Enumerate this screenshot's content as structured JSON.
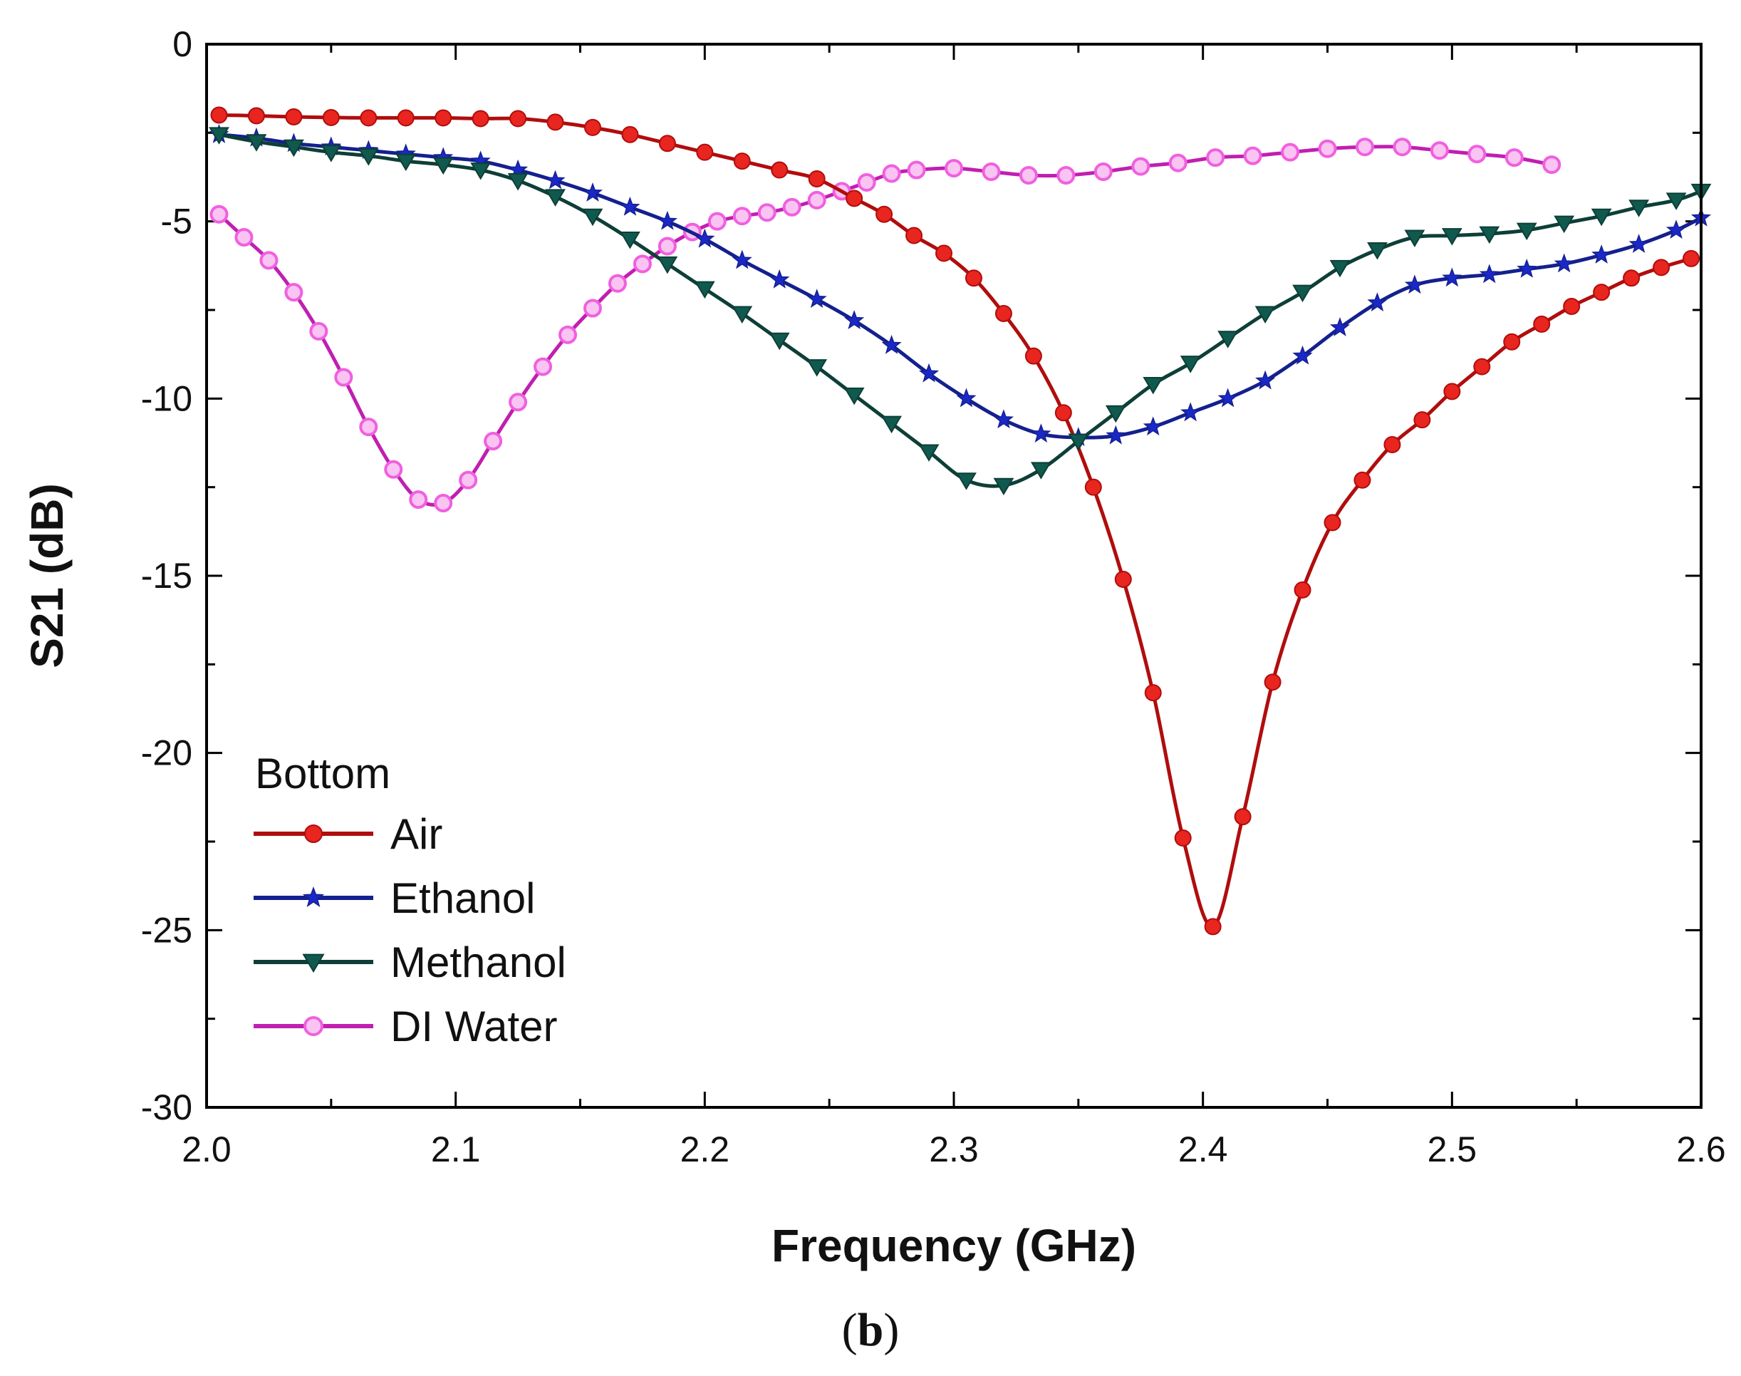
{
  "chart_data": {
    "type": "line",
    "title": "",
    "xlabel": "Frequency (GHz)",
    "ylabel": "S21 (dB)",
    "xlim": [
      2.0,
      2.6
    ],
    "ylim": [
      -30,
      0
    ],
    "xticks": [
      2.0,
      2.1,
      2.2,
      2.3,
      2.4,
      2.5,
      2.6
    ],
    "xtick_labels": [
      "2.0",
      "2.1",
      "2.2",
      "2.3",
      "2.4",
      "2.5",
      "2.6"
    ],
    "yticks": [
      0,
      -5,
      -10,
      -15,
      -20,
      -25,
      -30
    ],
    "ytick_labels": [
      "0",
      "-5",
      "-10",
      "-15",
      "-20",
      "-25",
      "-30"
    ],
    "grid": false,
    "legend": {
      "title": "Bottom",
      "position": "bottom-left"
    },
    "panel_label": {
      "open": "(",
      "letter": "b",
      "close": ")"
    },
    "series": [
      {
        "name": "Air",
        "color": "#e8251e",
        "line_color": "#b00d0d",
        "marker": "circle-filled",
        "points": [
          [
            2.005,
            -2.0
          ],
          [
            2.02,
            -2.02
          ],
          [
            2.035,
            -2.05
          ],
          [
            2.05,
            -2.07
          ],
          [
            2.065,
            -2.08
          ],
          [
            2.08,
            -2.08
          ],
          [
            2.095,
            -2.08
          ],
          [
            2.11,
            -2.1
          ],
          [
            2.125,
            -2.1
          ],
          [
            2.14,
            -2.2
          ],
          [
            2.155,
            -2.35
          ],
          [
            2.17,
            -2.55
          ],
          [
            2.185,
            -2.8
          ],
          [
            2.2,
            -3.05
          ],
          [
            2.215,
            -3.3
          ],
          [
            2.23,
            -3.55
          ],
          [
            2.245,
            -3.8
          ],
          [
            2.26,
            -4.35
          ],
          [
            2.272,
            -4.8
          ],
          [
            2.284,
            -5.4
          ],
          [
            2.296,
            -5.9
          ],
          [
            2.308,
            -6.6
          ],
          [
            2.32,
            -7.6
          ],
          [
            2.332,
            -8.8
          ],
          [
            2.344,
            -10.4
          ],
          [
            2.356,
            -12.5
          ],
          [
            2.368,
            -15.1
          ],
          [
            2.38,
            -18.3
          ],
          [
            2.392,
            -22.4
          ],
          [
            2.404,
            -24.9
          ],
          [
            2.416,
            -21.8
          ],
          [
            2.428,
            -18.0
          ],
          [
            2.44,
            -15.4
          ],
          [
            2.452,
            -13.5
          ],
          [
            2.464,
            -12.3
          ],
          [
            2.476,
            -11.3
          ],
          [
            2.488,
            -10.6
          ],
          [
            2.5,
            -9.8
          ],
          [
            2.512,
            -9.1
          ],
          [
            2.524,
            -8.4
          ],
          [
            2.536,
            -7.9
          ],
          [
            2.548,
            -7.4
          ],
          [
            2.56,
            -7.0
          ],
          [
            2.572,
            -6.6
          ],
          [
            2.584,
            -6.3
          ],
          [
            2.596,
            -6.05
          ]
        ]
      },
      {
        "name": "Ethanol",
        "color": "#1b28c8",
        "line_color": "#14208e",
        "marker": "star",
        "points": [
          [
            2.005,
            -2.55
          ],
          [
            2.02,
            -2.65
          ],
          [
            2.035,
            -2.8
          ],
          [
            2.05,
            -2.9
          ],
          [
            2.065,
            -3.0
          ],
          [
            2.08,
            -3.1
          ],
          [
            2.095,
            -3.2
          ],
          [
            2.11,
            -3.3
          ],
          [
            2.125,
            -3.55
          ],
          [
            2.14,
            -3.85
          ],
          [
            2.155,
            -4.2
          ],
          [
            2.17,
            -4.6
          ],
          [
            2.185,
            -5.0
          ],
          [
            2.2,
            -5.5
          ],
          [
            2.215,
            -6.1
          ],
          [
            2.23,
            -6.65
          ],
          [
            2.245,
            -7.2
          ],
          [
            2.26,
            -7.8
          ],
          [
            2.275,
            -8.5
          ],
          [
            2.29,
            -9.3
          ],
          [
            2.305,
            -10.0
          ],
          [
            2.32,
            -10.6
          ],
          [
            2.335,
            -11.0
          ],
          [
            2.35,
            -11.1
          ],
          [
            2.365,
            -11.05
          ],
          [
            2.38,
            -10.8
          ],
          [
            2.395,
            -10.4
          ],
          [
            2.41,
            -10.0
          ],
          [
            2.425,
            -9.5
          ],
          [
            2.44,
            -8.8
          ],
          [
            2.455,
            -8.0
          ],
          [
            2.47,
            -7.3
          ],
          [
            2.485,
            -6.8
          ],
          [
            2.5,
            -6.6
          ],
          [
            2.515,
            -6.5
          ],
          [
            2.53,
            -6.35
          ],
          [
            2.545,
            -6.2
          ],
          [
            2.56,
            -5.95
          ],
          [
            2.575,
            -5.65
          ],
          [
            2.59,
            -5.25
          ],
          [
            2.6,
            -4.9
          ]
        ]
      },
      {
        "name": "Methanol",
        "color": "#10594e",
        "line_color": "#0d3f37",
        "marker": "triangle-down",
        "points": [
          [
            2.005,
            -2.55
          ],
          [
            2.02,
            -2.75
          ],
          [
            2.035,
            -2.9
          ],
          [
            2.05,
            -3.05
          ],
          [
            2.065,
            -3.15
          ],
          [
            2.08,
            -3.3
          ],
          [
            2.095,
            -3.4
          ],
          [
            2.11,
            -3.55
          ],
          [
            2.125,
            -3.85
          ],
          [
            2.14,
            -4.3
          ],
          [
            2.155,
            -4.85
          ],
          [
            2.17,
            -5.5
          ],
          [
            2.185,
            -6.2
          ],
          [
            2.2,
            -6.9
          ],
          [
            2.215,
            -7.6
          ],
          [
            2.23,
            -8.35
          ],
          [
            2.245,
            -9.1
          ],
          [
            2.26,
            -9.9
          ],
          [
            2.275,
            -10.7
          ],
          [
            2.29,
            -11.5
          ],
          [
            2.305,
            -12.3
          ],
          [
            2.32,
            -12.45
          ],
          [
            2.335,
            -12.0
          ],
          [
            2.35,
            -11.2
          ],
          [
            2.365,
            -10.4
          ],
          [
            2.38,
            -9.6
          ],
          [
            2.395,
            -9.0
          ],
          [
            2.41,
            -8.3
          ],
          [
            2.425,
            -7.6
          ],
          [
            2.44,
            -7.0
          ],
          [
            2.455,
            -6.3
          ],
          [
            2.47,
            -5.8
          ],
          [
            2.485,
            -5.45
          ],
          [
            2.5,
            -5.4
          ],
          [
            2.515,
            -5.35
          ],
          [
            2.53,
            -5.25
          ],
          [
            2.545,
            -5.05
          ],
          [
            2.56,
            -4.85
          ],
          [
            2.575,
            -4.6
          ],
          [
            2.59,
            -4.4
          ],
          [
            2.6,
            -4.15
          ]
        ]
      },
      {
        "name": "DI Water",
        "color": "#f060e0",
        "line_color": "#c01fb0",
        "marker": "circle-open",
        "points": [
          [
            2.005,
            -4.8
          ],
          [
            2.015,
            -5.45
          ],
          [
            2.025,
            -6.1
          ],
          [
            2.035,
            -7.0
          ],
          [
            2.045,
            -8.1
          ],
          [
            2.055,
            -9.4
          ],
          [
            2.065,
            -10.8
          ],
          [
            2.075,
            -12.0
          ],
          [
            2.085,
            -12.85
          ],
          [
            2.095,
            -12.95
          ],
          [
            2.105,
            -12.3
          ],
          [
            2.115,
            -11.2
          ],
          [
            2.125,
            -10.1
          ],
          [
            2.135,
            -9.1
          ],
          [
            2.145,
            -8.2
          ],
          [
            2.155,
            -7.45
          ],
          [
            2.165,
            -6.75
          ],
          [
            2.175,
            -6.2
          ],
          [
            2.185,
            -5.7
          ],
          [
            2.195,
            -5.3
          ],
          [
            2.205,
            -5.0
          ],
          [
            2.215,
            -4.85
          ],
          [
            2.225,
            -4.75
          ],
          [
            2.235,
            -4.6
          ],
          [
            2.245,
            -4.4
          ],
          [
            2.255,
            -4.15
          ],
          [
            2.265,
            -3.9
          ],
          [
            2.275,
            -3.65
          ],
          [
            2.285,
            -3.55
          ],
          [
            2.3,
            -3.5
          ],
          [
            2.315,
            -3.6
          ],
          [
            2.33,
            -3.7
          ],
          [
            2.345,
            -3.7
          ],
          [
            2.36,
            -3.6
          ],
          [
            2.375,
            -3.45
          ],
          [
            2.39,
            -3.35
          ],
          [
            2.405,
            -3.2
          ],
          [
            2.42,
            -3.15
          ],
          [
            2.435,
            -3.05
          ],
          [
            2.45,
            -2.95
          ],
          [
            2.465,
            -2.9
          ],
          [
            2.48,
            -2.9
          ],
          [
            2.495,
            -3.0
          ],
          [
            2.51,
            -3.1
          ],
          [
            2.525,
            -3.2
          ],
          [
            2.54,
            -3.4
          ]
        ]
      }
    ]
  }
}
